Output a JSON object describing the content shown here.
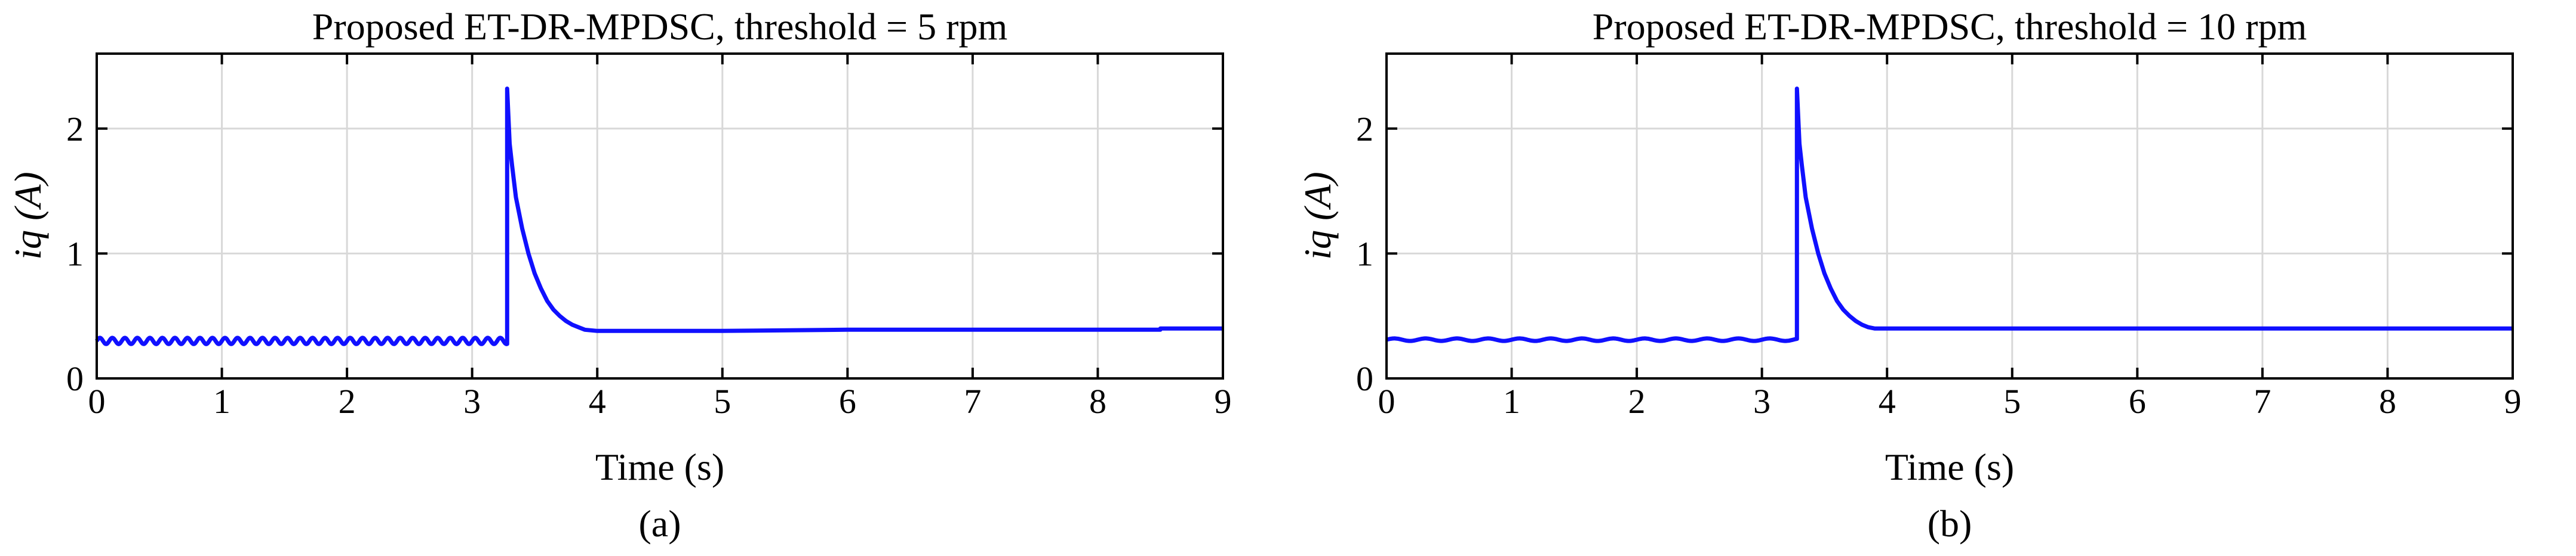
{
  "chart_data": [
    {
      "type": "line",
      "title": "Proposed ET-DR-MPDSC, threshold = 5 rpm",
      "xlabel": "Time (s)",
      "ylabel": "iq (A)",
      "caption": "(a)",
      "xlim": [
        0,
        9
      ],
      "ylim": [
        0,
        2.6
      ],
      "xticks": [
        0,
        1,
        2,
        3,
        4,
        5,
        6,
        7,
        8,
        9
      ],
      "yticks": [
        0,
        1,
        2
      ],
      "grid": true,
      "series": [
        {
          "color": "#1010ff",
          "ripple": {
            "amplitude": 0.025,
            "period": 0.1,
            "until": 3.28
          },
          "x": [
            0,
            3.28,
            3.28,
            3.29,
            3.3,
            3.32,
            3.35,
            3.4,
            3.45,
            3.5,
            3.55,
            3.6,
            3.65,
            3.7,
            3.75,
            3.8,
            3.85,
            3.9,
            4.0,
            4.5,
            5.0,
            6.0,
            7.0,
            8.0,
            8.5,
            8.5,
            9.0
          ],
          "y": [
            0.3,
            0.3,
            2.32,
            2.1,
            1.88,
            1.7,
            1.45,
            1.2,
            1.0,
            0.84,
            0.72,
            0.62,
            0.55,
            0.5,
            0.46,
            0.43,
            0.41,
            0.39,
            0.38,
            0.38,
            0.38,
            0.39,
            0.39,
            0.39,
            0.39,
            0.4,
            0.4
          ]
        }
      ]
    },
    {
      "type": "line",
      "title": "Proposed ET-DR-MPDSC, threshold = 10 rpm",
      "xlabel": "Time (s)",
      "ylabel": "iq (A)",
      "caption": "(b)",
      "xlim": [
        0,
        9
      ],
      "ylim": [
        0,
        2.6
      ],
      "xticks": [
        0,
        1,
        2,
        3,
        4,
        5,
        6,
        7,
        8,
        9
      ],
      "yticks": [
        0,
        1,
        2
      ],
      "grid": true,
      "series": [
        {
          "color": "#1010ff",
          "ripple": {
            "amplitude": 0.01,
            "period": 0.25,
            "until": 3.28
          },
          "x": [
            0,
            3.28,
            3.28,
            3.29,
            3.3,
            3.32,
            3.35,
            3.4,
            3.45,
            3.5,
            3.55,
            3.6,
            3.65,
            3.7,
            3.75,
            3.8,
            3.85,
            3.9,
            4.0,
            4.5,
            5.0,
            6.0,
            7.0,
            8.0,
            9.0
          ],
          "y": [
            0.31,
            0.31,
            2.32,
            2.1,
            1.88,
            1.7,
            1.45,
            1.2,
            1.0,
            0.84,
            0.72,
            0.62,
            0.55,
            0.5,
            0.46,
            0.43,
            0.41,
            0.4,
            0.4,
            0.4,
            0.4,
            0.4,
            0.4,
            0.4,
            0.4
          ]
        }
      ]
    }
  ]
}
